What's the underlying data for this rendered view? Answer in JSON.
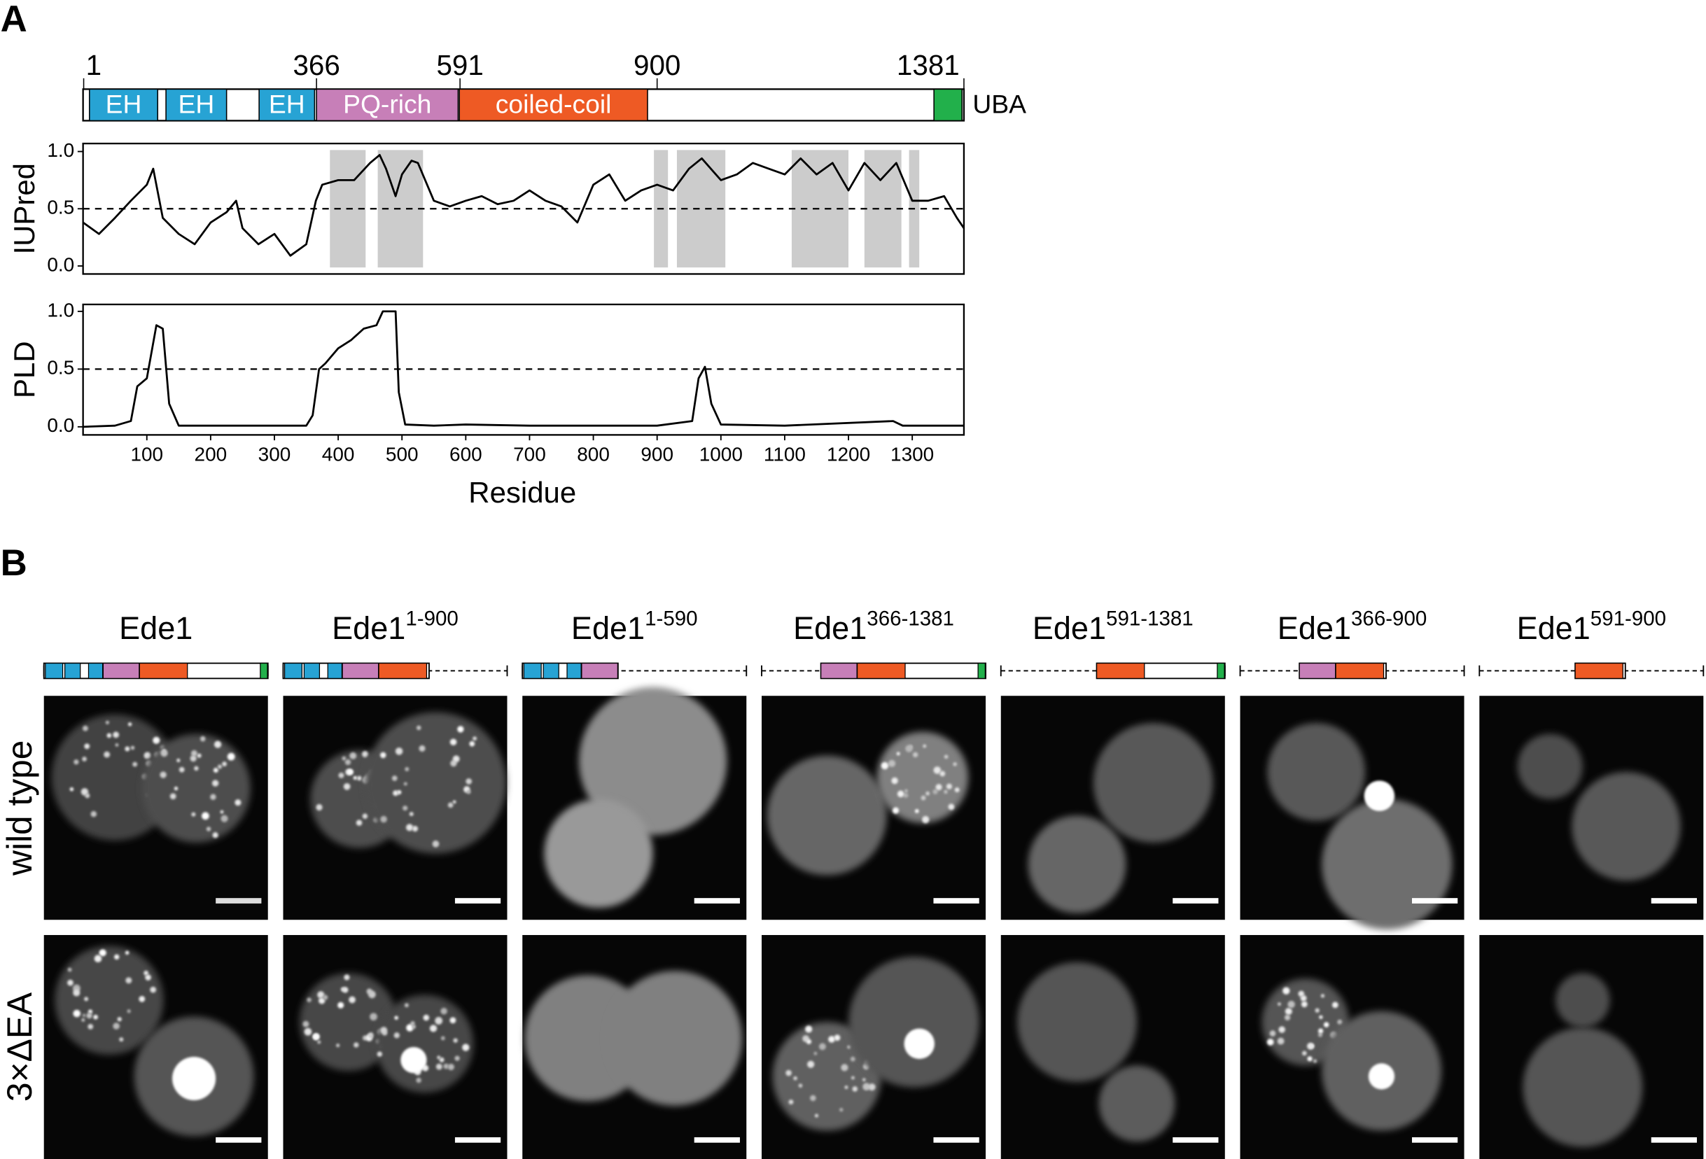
{
  "panel_labels": [
    "A",
    "B"
  ],
  "domain_map": {
    "positions": [
      1,
      366,
      591,
      900,
      1381
    ],
    "domains": [
      {
        "name": "EH",
        "start": 10,
        "end": 117,
        "color": "#27a3d4"
      },
      {
        "name": "EH",
        "start": 130,
        "end": 225,
        "color": "#27a3d4"
      },
      {
        "name": "EH",
        "start": 276,
        "end": 363,
        "color": "#27a3d4"
      },
      {
        "name": "PQ-rich",
        "start": 366,
        "end": 588,
        "color": "#c77fb8"
      },
      {
        "name": "coiled-coil",
        "start": 590,
        "end": 885,
        "color": "#ee5a24"
      },
      {
        "name": "UBA",
        "start": 1334,
        "end": 1378,
        "color": "#22b04b"
      }
    ]
  },
  "chart_data": [
    {
      "type": "line",
      "y_label": "IUPred",
      "xlim": [
        0,
        1381
      ],
      "ylim": [
        -0.07,
        1.07
      ],
      "yticks": [
        {
          "value": 0,
          "label": "0.0"
        },
        0.5,
        {
          "value": 1,
          "label": "1.0"
        }
      ],
      "threshold": 0.5,
      "color": "#000000",
      "shaded_regions": [
        [
          387,
          443
        ],
        [
          462,
          533
        ],
        [
          895,
          917
        ],
        [
          931,
          1007
        ],
        [
          1111,
          1200
        ],
        [
          1225,
          1283
        ],
        [
          1295,
          1311
        ]
      ],
      "x": [
        0,
        25,
        50,
        75,
        100,
        110,
        125,
        150,
        175,
        200,
        225,
        240,
        250,
        275,
        300,
        325,
        350,
        365,
        375,
        400,
        425,
        450,
        465,
        475,
        490,
        500,
        515,
        525,
        550,
        575,
        600,
        625,
        650,
        675,
        700,
        725,
        750,
        775,
        800,
        825,
        850,
        875,
        900,
        925,
        950,
        970,
        1000,
        1025,
        1050,
        1075,
        1100,
        1125,
        1150,
        1175,
        1200,
        1225,
        1250,
        1275,
        1300,
        1325,
        1350,
        1370,
        1381
      ],
      "values": [
        0.38,
        0.28,
        0.42,
        0.57,
        0.71,
        0.85,
        0.42,
        0.28,
        0.19,
        0.38,
        0.47,
        0.57,
        0.33,
        0.19,
        0.28,
        0.09,
        0.19,
        0.57,
        0.71,
        0.75,
        0.75,
        0.9,
        0.97,
        0.85,
        0.61,
        0.8,
        0.92,
        0.9,
        0.57,
        0.52,
        0.57,
        0.61,
        0.54,
        0.57,
        0.66,
        0.57,
        0.52,
        0.38,
        0.71,
        0.8,
        0.57,
        0.66,
        0.71,
        0.66,
        0.85,
        0.94,
        0.75,
        0.8,
        0.9,
        0.85,
        0.8,
        0.94,
        0.8,
        0.9,
        0.66,
        0.9,
        0.75,
        0.9,
        0.57,
        0.57,
        0.61,
        0.42,
        0.33
      ]
    },
    {
      "type": "line",
      "y_label": "PLD",
      "x_label": "Residue",
      "xlim": [
        0,
        1381
      ],
      "ylim": [
        -0.07,
        1.06
      ],
      "xticks": [
        100,
        200,
        300,
        400,
        500,
        600,
        700,
        800,
        900,
        1000,
        1100,
        1200,
        1300
      ],
      "yticks": [
        {
          "value": 0,
          "label": "0.0"
        },
        0.5,
        {
          "value": 1,
          "label": "1.0"
        }
      ],
      "threshold": 0.5,
      "color": "#000000",
      "x": [
        0,
        50,
        75,
        85,
        100,
        115,
        125,
        135,
        150,
        200,
        300,
        350,
        360,
        370,
        380,
        400,
        420,
        440,
        460,
        470,
        490,
        495,
        505,
        550,
        600,
        700,
        800,
        900,
        955,
        965,
        975,
        985,
        1000,
        1100,
        1270,
        1285,
        1381
      ],
      "values": [
        0,
        0.01,
        0.05,
        0.35,
        0.42,
        0.88,
        0.85,
        0.2,
        0.01,
        0.01,
        0.01,
        0.01,
        0.1,
        0.5,
        0.55,
        0.68,
        0.75,
        0.85,
        0.88,
        1,
        1,
        0.3,
        0.02,
        0.01,
        0.02,
        0.01,
        0.01,
        0.01,
        0.05,
        0.42,
        0.52,
        0.2,
        0.02,
        0.01,
        0.05,
        0.01,
        0.01
      ]
    }
  ],
  "constructs": [
    {
      "name": "Ede1",
      "start": 1,
      "end": 1381
    },
    {
      "name": "Ede1",
      "range": "1-900",
      "start": 1,
      "end": 900
    },
    {
      "name": "Ede1",
      "range": "1-590",
      "start": 1,
      "end": 590
    },
    {
      "name": "Ede1",
      "range": "366-1381",
      "start": 366,
      "end": 1381
    },
    {
      "name": "Ede1",
      "range": "591-1381",
      "start": 591,
      "end": 1381
    },
    {
      "name": "Ede1",
      "range": "366-900",
      "start": 366,
      "end": 900
    },
    {
      "name": "Ede1",
      "range": "591-900",
      "start": 591,
      "end": 900
    }
  ],
  "row_labels": [
    "wild type",
    "3×ΔEA"
  ]
}
